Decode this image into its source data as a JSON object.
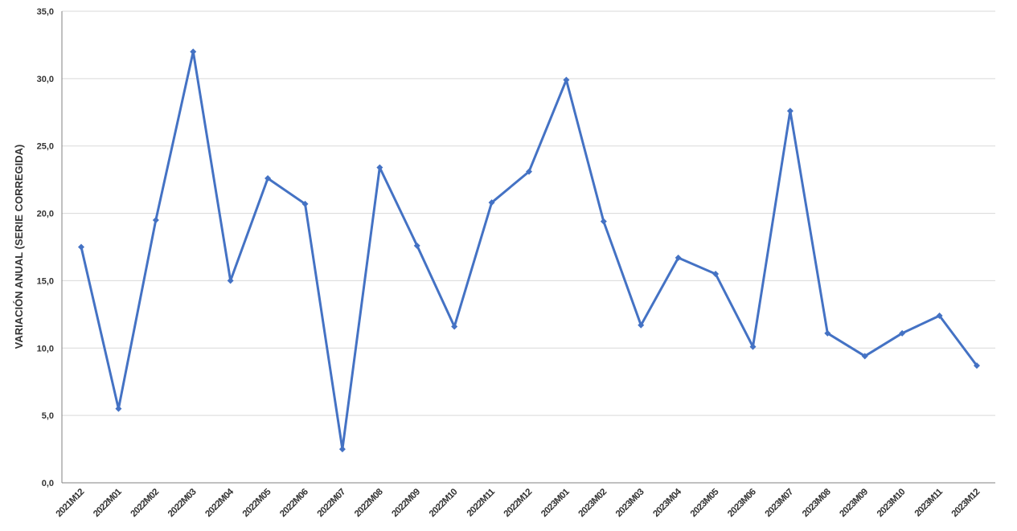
{
  "chart_data": {
    "type": "line",
    "title": "",
    "xlabel": "",
    "ylabel": "VARIACIÓN ANUAL (SERIE CORREGIDA)",
    "categories": [
      "2021M12",
      "2022M01",
      "2022M02",
      "2022M03",
      "2022M04",
      "2022M05",
      "2022M06",
      "2022M07",
      "2022M08",
      "2022M09",
      "2022M10",
      "2022M11",
      "2022M12",
      "2023M01",
      "2023M02",
      "2023M03",
      "2023M04",
      "2023M05",
      "2023M06",
      "2023M07",
      "2023M08",
      "2023M09",
      "2023M10",
      "2023M11",
      "2023M12"
    ],
    "series": [
      {
        "values": [
          17.5,
          5.5,
          19.5,
          32.0,
          15.0,
          22.6,
          20.7,
          2.5,
          23.4,
          17.6,
          11.6,
          20.8,
          23.1,
          29.9,
          19.4,
          11.7,
          16.7,
          15.5,
          10.1,
          27.6,
          11.1,
          9.4,
          11.1,
          12.4,
          8.7
        ]
      }
    ],
    "yticks": [
      "0,0",
      "5,0",
      "10,0",
      "15,0",
      "20,0",
      "25,0",
      "30,0",
      "35,0"
    ],
    "ylim": [
      0,
      35
    ],
    "grid": true,
    "legend": "none",
    "colors": {
      "series": "#4472C4",
      "grid": "#d9d9d9",
      "axis": "#808080"
    }
  }
}
